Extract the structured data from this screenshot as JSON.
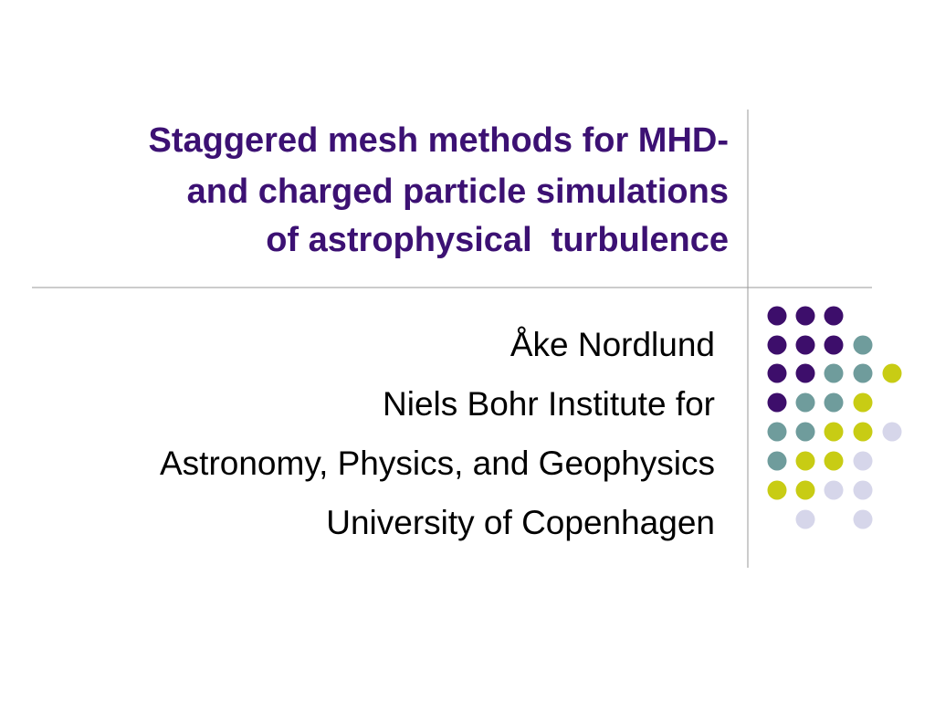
{
  "slide": {
    "title": [
      "Staggered mesh methods for MHD-",
      "and charged particle simulations",
      "of astrophysical  turbulence"
    ],
    "subtitle": [
      "Åke Nordlund",
      "Niels Bohr Institute for",
      "Astronomy, Physics, and Geophysics",
      "University of Copenhagen"
    ]
  }
}
